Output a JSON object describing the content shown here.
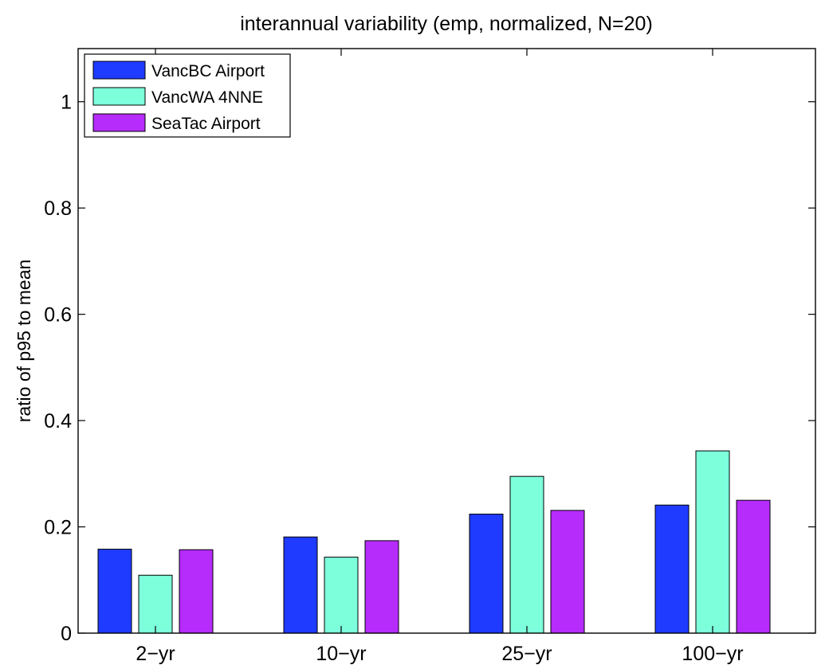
{
  "chart_data": {
    "type": "bar",
    "title": "interannual variability (emp, normalized, N=20)",
    "xlabel": "",
    "ylabel": "ratio of p95 to mean",
    "categories": [
      "2−yr",
      "10−yr",
      "25−yr",
      "100−yr"
    ],
    "series": [
      {
        "name": "VancBC Airport",
        "color": "#1f3bff",
        "values": [
          0.158,
          0.181,
          0.224,
          0.241
        ]
      },
      {
        "name": "VancWA 4NNE",
        "color": "#7dffdc",
        "values": [
          0.109,
          0.143,
          0.295,
          0.343
        ]
      },
      {
        "name": "SeaTac Airport",
        "color": "#b52cfb",
        "values": [
          0.157,
          0.174,
          0.231,
          0.25
        ]
      }
    ],
    "ylim": [
      0,
      1.1
    ],
    "yticks": [
      0,
      0.2,
      0.4,
      0.6,
      0.8,
      1
    ],
    "ytick_labels": [
      "0",
      "0.2",
      "0.4",
      "0.6",
      "0.8",
      "1"
    ],
    "grid": false,
    "legend_position": "top-left"
  }
}
